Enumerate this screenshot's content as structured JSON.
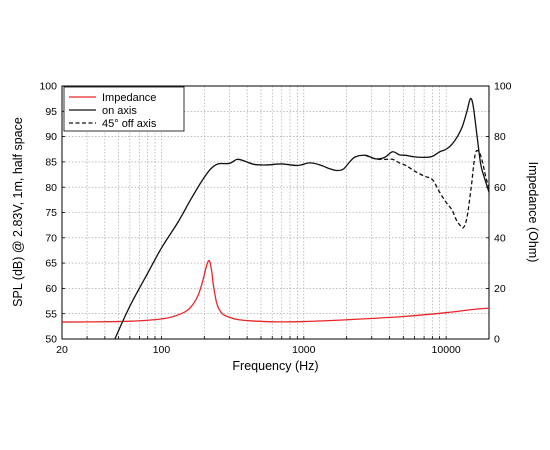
{
  "chart_data": {
    "type": "line",
    "xlabel": "Frequency (Hz)",
    "ylabel_left": "SPL (dB) @ 2.83V, 1m, half space",
    "ylabel_right": "Impedance (Ohm)",
    "x_scale": "log",
    "xlim": [
      20,
      20000
    ],
    "ylim_left": [
      50,
      100
    ],
    "ylim_right": [
      0,
      100
    ],
    "grid": true,
    "legend_position": "top-left",
    "x_tick_labels": [
      "20",
      "100",
      "1000",
      "10000"
    ],
    "y_left_tick_labels": [
      "50",
      "55",
      "60",
      "65",
      "70",
      "75",
      "80",
      "85",
      "90",
      "95",
      "100"
    ],
    "y_right_tick_labels": [
      "0",
      "20",
      "40",
      "60",
      "80",
      "100"
    ],
    "series": [
      {
        "name": "Impedance",
        "axis": "right",
        "color": "#e8262a",
        "style": "solid",
        "x": [
          20,
          50,
          80,
          110,
          140,
          160,
          180,
          195,
          205,
          212,
          218,
          225,
          232,
          245,
          265,
          300,
          350,
          450,
          600,
          1000,
          2000,
          5000,
          10000,
          15000,
          20000
        ],
        "y": [
          6.7,
          6.9,
          7.4,
          8.3,
          10.2,
          12.5,
          17,
          23,
          28,
          30.5,
          30.7,
          27,
          21,
          14,
          10.2,
          8.6,
          7.6,
          7.1,
          6.8,
          6.9,
          7.6,
          8.9,
          10.4,
          11.6,
          12.2
        ]
      },
      {
        "name": "on axis",
        "axis": "left",
        "color": "#111111",
        "style": "solid",
        "x": [
          47,
          60,
          80,
          100,
          130,
          160,
          190,
          220,
          250,
          300,
          340,
          380,
          450,
          550,
          700,
          900,
          1100,
          1300,
          1500,
          1700,
          1900,
          2100,
          2300,
          2700,
          3200,
          3700,
          4200,
          4700,
          5200,
          6000,
          7000,
          8000,
          9000,
          10000,
          11000,
          12000,
          13000,
          14000,
          14800,
          15500,
          16500,
          17500,
          18500,
          19500,
          20000
        ],
        "y": [
          50,
          56.5,
          63,
          68,
          73,
          77.5,
          81,
          83.5,
          84.6,
          84.7,
          85.5,
          85.2,
          84.5,
          84.4,
          84.6,
          84.3,
          84.8,
          84.4,
          83.7,
          83.3,
          83.6,
          85,
          86,
          86.3,
          85.6,
          85.9,
          87,
          86.4,
          86.3,
          86,
          85.9,
          86.1,
          87,
          87.5,
          88.5,
          90,
          92,
          95,
          97.5,
          96,
          90,
          84.5,
          82,
          80,
          79
        ]
      },
      {
        "name": "45° off axis",
        "axis": "left",
        "color": "#111111",
        "style": "dashed",
        "x": [
          2700,
          3200,
          3700,
          4200,
          4700,
          5200,
          6000,
          7000,
          8000,
          9000,
          10000,
          11000,
          11800,
          12500,
          13200,
          14000,
          15000,
          16000,
          17000,
          18000,
          19000,
          20000
        ],
        "y": [
          86.3,
          85.6,
          85.5,
          85.5,
          84.8,
          84.3,
          83.2,
          82.2,
          81.5,
          79,
          77,
          75.5,
          73.5,
          72.5,
          72,
          74,
          80,
          86.5,
          87,
          85,
          82,
          80
        ]
      }
    ]
  }
}
